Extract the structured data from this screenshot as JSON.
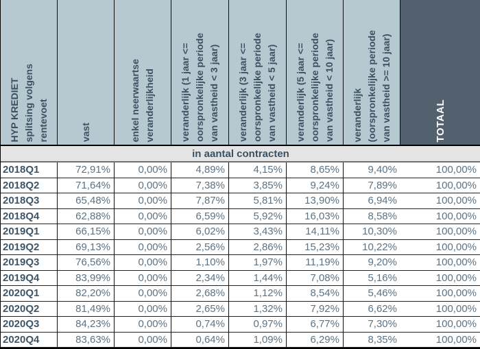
{
  "table": {
    "headers": [
      "HYP KREDIET\nsplitsing volgens\nrentevoet",
      "vast",
      "enkel neerwaartse\nveranderlijkheid",
      "veranderlijk (1 jaar <=\noorspronkelijke periode\nvan vastheid < 3 jaar)",
      "veranderlijk (3 jaar <=\noorspronkelijke periode\nvan vastheid < 5 jaar)",
      "veranderlijk (5 jaar <=\noorspronkelijke periode\nvan vastheid < 10 jaar)",
      "veranderlijk\n(oorspronkelijke periode\nvan vastheid >= 10 jaar)",
      "TOTAAL"
    ],
    "subheader": "in aantal contracten",
    "rows": [
      {
        "label": "2018Q1",
        "values": [
          "72,91%",
          "0,00%",
          "4,89%",
          "4,15%",
          "8,65%",
          "9,40%",
          "100,00%"
        ]
      },
      {
        "label": "2018Q2",
        "values": [
          "71,64%",
          "0,00%",
          "7,38%",
          "3,85%",
          "9,24%",
          "7,89%",
          "100,00%"
        ]
      },
      {
        "label": "2018Q3",
        "values": [
          "65,48%",
          "0,00%",
          "7,87%",
          "5,81%",
          "13,90%",
          "6,94%",
          "100,00%"
        ]
      },
      {
        "label": "2018Q4",
        "values": [
          "62,88%",
          "0,00%",
          "6,59%",
          "5,92%",
          "16,03%",
          "8,58%",
          "100,00%"
        ]
      },
      {
        "label": "2019Q1",
        "values": [
          "66,15%",
          "0,00%",
          "6,02%",
          "3,43%",
          "14,11%",
          "10,30%",
          "100,00%"
        ]
      },
      {
        "label": "2019Q2",
        "values": [
          "69,13%",
          "0,00%",
          "2,56%",
          "2,86%",
          "15,23%",
          "10,22%",
          "100,00%"
        ]
      },
      {
        "label": "2019Q3",
        "values": [
          "76,56%",
          "0,00%",
          "1,10%",
          "1,97%",
          "11,19%",
          "9,20%",
          "100,00%"
        ]
      },
      {
        "label": "2019Q4",
        "values": [
          "83,99%",
          "0,00%",
          "2,34%",
          "1,44%",
          "7,08%",
          "5,16%",
          "100,00%"
        ]
      },
      {
        "label": "2020Q1",
        "values": [
          "82,20%",
          "0,00%",
          "2,68%",
          "1,12%",
          "8,54%",
          "5,46%",
          "100,00%"
        ]
      },
      {
        "label": "2020Q2",
        "values": [
          "81,49%",
          "0,00%",
          "2,65%",
          "1,32%",
          "7,92%",
          "6,62%",
          "100,00%"
        ]
      },
      {
        "label": "2020Q3",
        "values": [
          "84,23%",
          "0,00%",
          "0,74%",
          "0,97%",
          "6,77%",
          "7,30%",
          "100,00%"
        ]
      },
      {
        "label": "2020Q4",
        "values": [
          "83,63%",
          "0,00%",
          "0,64%",
          "1,09%",
          "6,29%",
          "8,35%",
          "100,00%"
        ]
      }
    ]
  },
  "colors": {
    "header_bg": "#b6c8d0",
    "total_header_bg": "#52616d",
    "header_text": "#3b5162",
    "total_header_text": "#ffffff",
    "subheader_bg": "#e4e4e4",
    "data_text": "#5d7282",
    "row_label_text": "#3f5668",
    "border": "#000000"
  },
  "chart_data": {
    "type": "table",
    "title": "HYP KREDIET splitsing volgens rentevoet",
    "subtitle": "in aantal contracten",
    "unit": "%",
    "categories": [
      "2018Q1",
      "2018Q2",
      "2018Q3",
      "2018Q4",
      "2019Q1",
      "2019Q2",
      "2019Q3",
      "2019Q4",
      "2020Q1",
      "2020Q2",
      "2020Q3",
      "2020Q4"
    ],
    "series": [
      {
        "name": "vast",
        "values": [
          72.91,
          71.64,
          65.48,
          62.88,
          66.15,
          69.13,
          76.56,
          83.99,
          82.2,
          81.49,
          84.23,
          83.63
        ]
      },
      {
        "name": "enkel neerwaartse veranderlijkheid",
        "values": [
          0.0,
          0.0,
          0.0,
          0.0,
          0.0,
          0.0,
          0.0,
          0.0,
          0.0,
          0.0,
          0.0,
          0.0
        ]
      },
      {
        "name": "veranderlijk (1 jaar <= oorspronkelijke periode van vastheid < 3 jaar)",
        "values": [
          4.89,
          7.38,
          7.87,
          6.59,
          6.02,
          2.56,
          1.1,
          2.34,
          2.68,
          2.65,
          0.74,
          0.64
        ]
      },
      {
        "name": "veranderlijk (3 jaar <= oorspronkelijke periode van vastheid < 5 jaar)",
        "values": [
          4.15,
          3.85,
          5.81,
          5.92,
          3.43,
          2.86,
          1.97,
          1.44,
          1.12,
          1.32,
          0.97,
          1.09
        ]
      },
      {
        "name": "veranderlijk (5 jaar <= oorspronkelijke periode van vastheid < 10 jaar)",
        "values": [
          8.65,
          9.24,
          13.9,
          16.03,
          14.11,
          15.23,
          11.19,
          7.08,
          8.54,
          7.92,
          6.77,
          6.29
        ]
      },
      {
        "name": "veranderlijk (oorspronkelijke periode van vastheid >= 10 jaar)",
        "values": [
          9.4,
          7.89,
          6.94,
          8.58,
          10.3,
          10.22,
          9.2,
          5.16,
          5.46,
          6.62,
          7.3,
          8.35
        ]
      },
      {
        "name": "TOTAAL",
        "values": [
          100.0,
          100.0,
          100.0,
          100.0,
          100.0,
          100.0,
          100.0,
          100.0,
          100.0,
          100.0,
          100.0,
          100.0
        ]
      }
    ]
  }
}
